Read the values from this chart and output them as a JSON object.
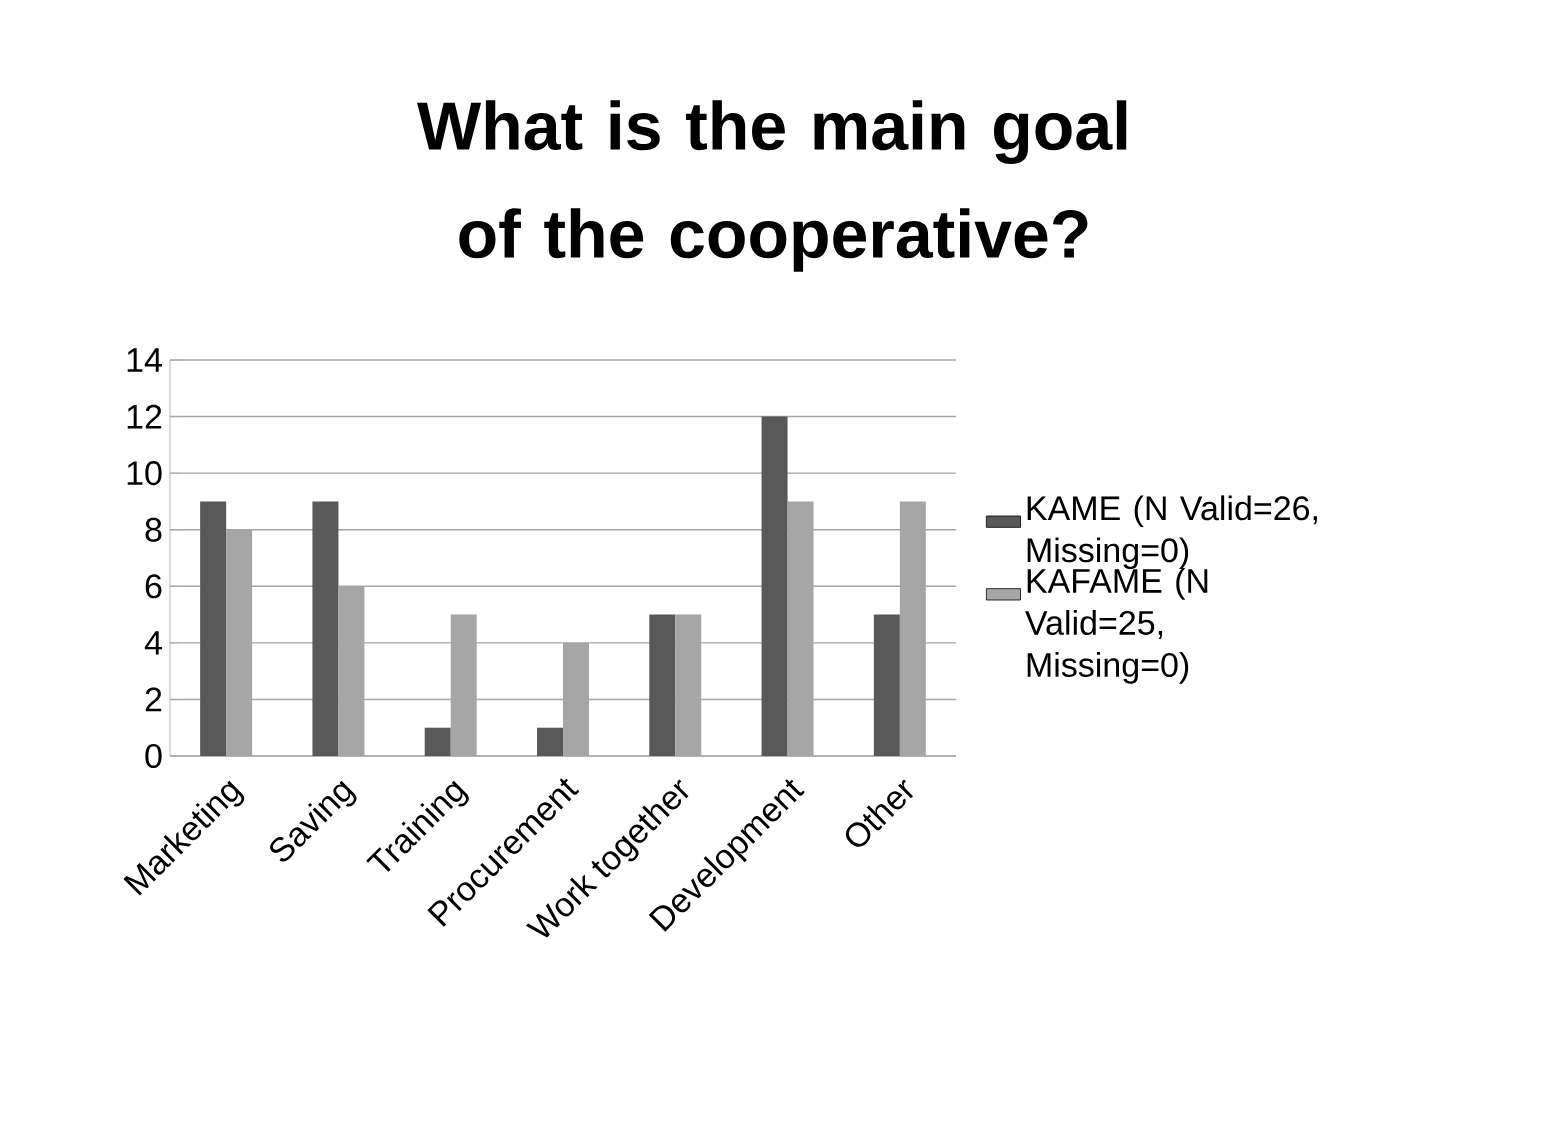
{
  "chart_data": {
    "type": "bar",
    "title": "What is the main goal of the cooperative?",
    "categories": [
      "Marketing",
      "Saving",
      "Training",
      "Procurement",
      "Work together",
      "Development",
      "Other"
    ],
    "series": [
      {
        "name": "KAME (N Valid=26, Missing=0)",
        "color": "#595959",
        "values": [
          9,
          9,
          1,
          1,
          5,
          12,
          5
        ]
      },
      {
        "name": "KAFAME (N Valid=25, Missing=0)",
        "color": "#a6a6a6",
        "values": [
          8,
          6,
          5,
          4,
          5,
          9,
          9
        ]
      }
    ],
    "ylim": [
      0,
      14
    ],
    "yticks": [
      0,
      2,
      4,
      6,
      8,
      10,
      12,
      14
    ],
    "grid": "y",
    "legend": "right"
  }
}
